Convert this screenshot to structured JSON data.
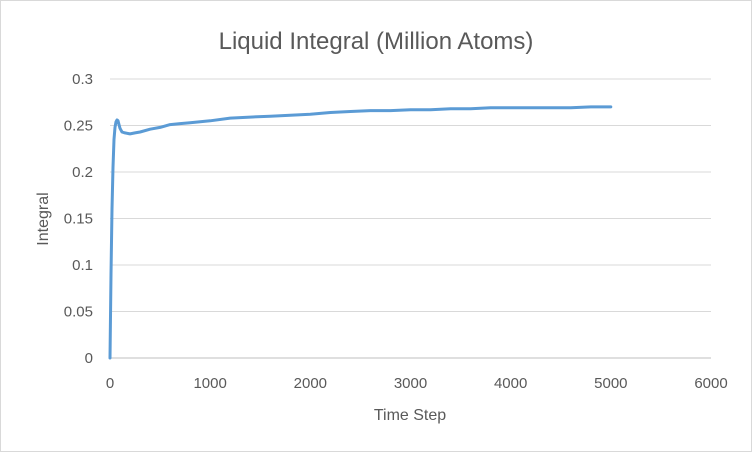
{
  "chart_data": {
    "type": "line",
    "title": "Liquid Integral (Million Atoms)",
    "xlabel": "Time Step",
    "ylabel": "Integral",
    "xlim": [
      0,
      6000
    ],
    "ylim": [
      0,
      0.3
    ],
    "x_ticks": [
      0,
      1000,
      2000,
      3000,
      4000,
      5000,
      6000
    ],
    "x_tick_labels": [
      "0",
      "1000",
      "2000",
      "3000",
      "4000",
      "5000",
      "6000"
    ],
    "y_ticks": [
      0,
      0.05,
      0.1,
      0.15,
      0.2,
      0.25,
      0.3
    ],
    "y_tick_labels": [
      "0",
      "0.05",
      "0.1",
      "0.15",
      "0.2",
      "0.25",
      "0.3"
    ],
    "grid": "horizontal",
    "legend": "none",
    "series": [
      {
        "color": "#5b9bd5",
        "x": [
          0,
          10,
          20,
          30,
          40,
          50,
          60,
          70,
          80,
          90,
          100,
          120,
          150,
          200,
          250,
          300,
          400,
          500,
          600,
          700,
          800,
          1000,
          1200,
          1400,
          1600,
          1800,
          2000,
          2200,
          2400,
          2600,
          2800,
          3000,
          3200,
          3400,
          3600,
          3800,
          4000,
          4200,
          4400,
          4600,
          4800,
          5000
        ],
        "y": [
          0,
          0.09,
          0.16,
          0.205,
          0.235,
          0.248,
          0.254,
          0.256,
          0.255,
          0.251,
          0.247,
          0.243,
          0.242,
          0.241,
          0.242,
          0.243,
          0.246,
          0.248,
          0.251,
          0.252,
          0.253,
          0.255,
          0.258,
          0.259,
          0.26,
          0.261,
          0.262,
          0.264,
          0.265,
          0.266,
          0.266,
          0.267,
          0.267,
          0.268,
          0.268,
          0.269,
          0.269,
          0.269,
          0.269,
          0.269,
          0.27,
          0.27
        ]
      }
    ]
  }
}
